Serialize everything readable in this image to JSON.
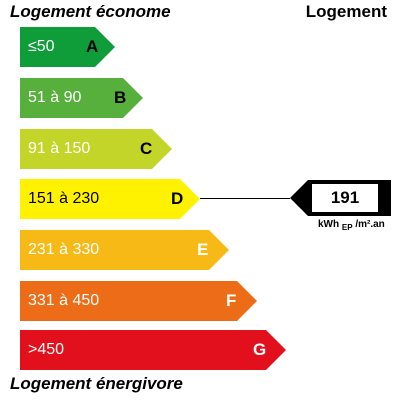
{
  "header": {
    "left_title": "Logement économe",
    "right_title": "Logement"
  },
  "footer": {
    "title": "Logement énergivore"
  },
  "classes": [
    {
      "letter": "A",
      "range": "≤50",
      "color": "#0f9d3a"
    },
    {
      "letter": "B",
      "range": "51 à 90",
      "color": "#56b03b"
    },
    {
      "letter": "C",
      "range": "91 à 150",
      "color": "#c4d52a"
    },
    {
      "letter": "D",
      "range": "151 à 230",
      "color": "#fff200"
    },
    {
      "letter": "E",
      "range": "231 à 330",
      "color": "#f7b915"
    },
    {
      "letter": "F",
      "range": "331 à 450",
      "color": "#ec6c17"
    },
    {
      "letter": "G",
      "range": ">450",
      "color": "#e2101c"
    }
  ],
  "current": {
    "value": "191",
    "class": "D",
    "unit_main": "kWh",
    "unit_sub": "EP",
    "unit_rest": "/m².an"
  }
}
